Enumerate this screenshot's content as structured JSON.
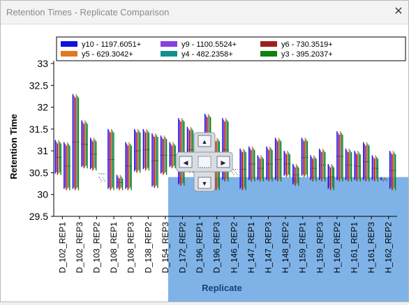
{
  "window": {
    "title": "Retention Times - Replicate Comparison",
    "close_glyph": "✕"
  },
  "chart_data": {
    "type": "bar",
    "ylabel": "Retention Time",
    "xlabel": "Replicate",
    "ylim": [
      29.5,
      33
    ],
    "yticks": [
      29.5,
      30,
      30.5,
      31,
      31.5,
      32,
      32.5,
      33
    ],
    "legend_position": "top",
    "legend": [
      {
        "label": "y10 - 1197.6051+",
        "color": "#1010e0"
      },
      {
        "label": "y9 - 1100.5524+",
        "color": "#8a3de0"
      },
      {
        "label": "y6 - 730.3519+",
        "color": "#a02020"
      },
      {
        "label": "y5 - 629.3042+",
        "color": "#e07a20"
      },
      {
        "label": "y4 - 482.2358+",
        "color": "#109090"
      },
      {
        "label": "y3 - 395.2037+",
        "color": "#108010"
      }
    ],
    "categories": [
      "D_102_REP1",
      "D_102_REP3",
      "D_103_REP2",
      "D_108_REP1",
      "D_108_REP3",
      "D_138_REP2",
      "D_154_REP3",
      "D_172_REP2",
      "D_196_REP1",
      "D_196_REP3",
      "H_146_REP2",
      "H_147_REP1",
      "H_147_REP3",
      "H_148_REP2",
      "H_159_REP1",
      "H_159_REP3",
      "H_160_REP2",
      "H_161_REP1",
      "H_161_REP3",
      "H_162_REP2"
    ],
    "lows": [
      30.45,
      30.1,
      30.1,
      30.6,
      30.55,
      30.55,
      30.1,
      30.1,
      30.1,
      30.5,
      30.55,
      30.15,
      30.45,
      30.6,
      30.2,
      30.5,
      30.15,
      30.25,
      30.1,
      30.3,
      30.6,
      30.1,
      30.3,
      30.3,
      30.3,
      30.3,
      30.4,
      30.2,
      30.4,
      30.3,
      30.3,
      30.1,
      30.3,
      30.3,
      30.3,
      30.3,
      30.3,
      30.3,
      30.1
    ],
    "highs": [
      31.25,
      31.2,
      32.3,
      31.7,
      31.3,
      30.4,
      31.5,
      30.45,
      31.2,
      31.5,
      31.5,
      31.4,
      31.35,
      31.2,
      31.75,
      31.55,
      31.4,
      31.85,
      31.3,
      31.75,
      30.55,
      31.05,
      31.1,
      30.9,
      31.1,
      31.3,
      31.0,
      30.7,
      31.3,
      30.9,
      31.05,
      30.7,
      31.45,
      31.05,
      31.0,
      31.2,
      30.9,
      30.4,
      31.0
    ],
    "selection": {
      "x_from": "D_154_REP3",
      "y_to": 30.4
    }
  },
  "pan_widget": {
    "up": "▲",
    "down": "▼",
    "left": "◀",
    "right": "▶"
  }
}
